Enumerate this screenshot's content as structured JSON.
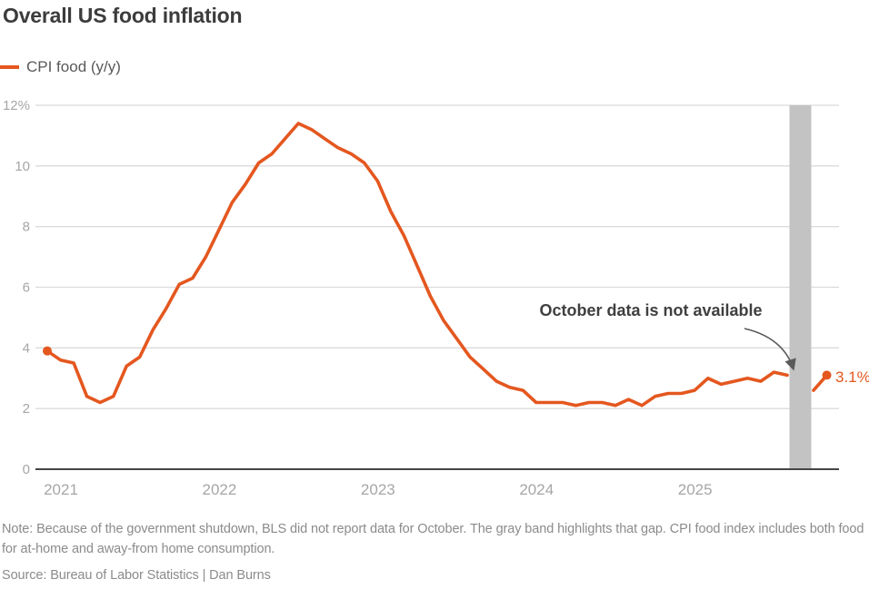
{
  "title": "Overall US food inflation",
  "legend": {
    "label": "CPI food (y/y)"
  },
  "annotation": {
    "text": "October data is not available"
  },
  "note": "Note: Because of the government shutdown, BLS did not report data for October. The gray band highlights that gap. CPI food index includes both food for at-home and away-from home consumption.",
  "source": "Source: Bureau of Labor Statistics | Dan Burns",
  "colors": {
    "line": "#E4571F",
    "band": "#C3C3C3",
    "grid": "#DBDBDB",
    "axis": "#454545",
    "tick_label": "#A6A6A6",
    "arrow": "#5A5A5A"
  },
  "chart_data": {
    "type": "line",
    "title": "Overall US food inflation",
    "x_frequency": "monthly",
    "x_start": "2021-01",
    "x_tick_labels": [
      "2021",
      "2022",
      "2023",
      "2024",
      "2025"
    ],
    "y_ticks": [
      {
        "label": "12%",
        "value": 12
      },
      {
        "label": "10",
        "value": 10
      },
      {
        "label": "8",
        "value": 8
      },
      {
        "label": "6",
        "value": 6
      },
      {
        "label": "4",
        "value": 4
      },
      {
        "label": "2",
        "value": 2
      },
      {
        "label": "0",
        "value": 0
      }
    ],
    "ylim": [
      0,
      12
    ],
    "grid": true,
    "legend_position": "top-left",
    "series": [
      {
        "name": "CPI food (y/y)",
        "unit": "%",
        "values": [
          3.9,
          3.6,
          3.5,
          2.4,
          2.2,
          2.4,
          3.4,
          3.7,
          4.6,
          5.3,
          6.1,
          6.3,
          7.0,
          7.9,
          8.8,
          9.4,
          10.1,
          10.4,
          10.9,
          11.4,
          11.2,
          10.9,
          10.6,
          10.4,
          10.1,
          9.5,
          8.5,
          7.7,
          6.7,
          5.7,
          4.9,
          4.3,
          3.7,
          3.3,
          2.9,
          2.7,
          2.6,
          2.2,
          2.2,
          2.2,
          2.1,
          2.2,
          2.2,
          2.1,
          2.3,
          2.1,
          2.4,
          2.5,
          2.5,
          2.6,
          3.0,
          2.8,
          2.9,
          3.0,
          2.9,
          3.2,
          3.1,
          null,
          2.6,
          3.1
        ]
      }
    ],
    "gap": {
      "month": "2025-10",
      "reason": "October data is not available"
    },
    "last_value_label": "3.1%"
  }
}
